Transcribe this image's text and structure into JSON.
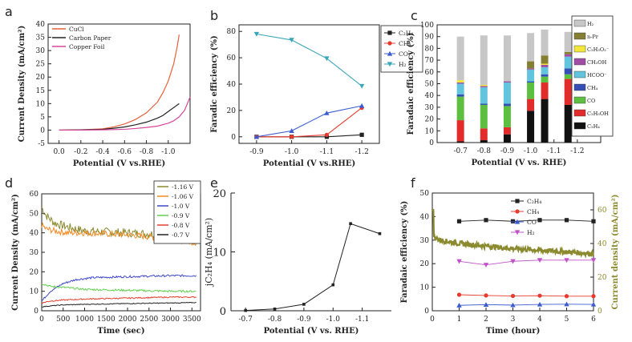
{
  "chart_data": [
    {
      "panel": "a",
      "type": "line",
      "xlabel": "Potential (V vs.RHE)",
      "ylabel": "Current Density (mA/cm²)",
      "xlim": [
        0.1,
        -1.2
      ],
      "ylim": [
        -5,
        40
      ],
      "xticks": [
        "0.0",
        "-0.2",
        "-0.4",
        "-0.6",
        "-0.8",
        "-1.0"
      ],
      "yticks": [
        "-5",
        "0",
        "5",
        "10",
        "15",
        "20",
        "25",
        "30",
        "35",
        "40"
      ],
      "series": [
        {
          "name": "CuCl",
          "color": "#e8613c",
          "x": [
            0,
            -0.2,
            -0.4,
            -0.5,
            -0.6,
            -0.7,
            -0.8,
            -0.9,
            -0.95,
            -1.0,
            -1.05,
            -1.08,
            -1.1
          ],
          "y": [
            0,
            0.1,
            0.5,
            1.2,
            2.3,
            4.0,
            6.5,
            10.5,
            14,
            18.5,
            25,
            31,
            36
          ]
        },
        {
          "name": "Carbon Paper",
          "color": "#222222",
          "x": [
            0,
            -0.2,
            -0.4,
            -0.5,
            -0.6,
            -0.7,
            -0.8,
            -0.9,
            -0.95,
            -1.0,
            -1.05,
            -1.1
          ],
          "y": [
            0,
            0.1,
            0.3,
            0.7,
            1.2,
            2.0,
            3.0,
            4.5,
            5.5,
            7.0,
            8.5,
            10
          ]
        },
        {
          "name": "Copper Foil",
          "color": "#d9479a",
          "x": [
            0,
            -0.2,
            -0.4,
            -0.6,
            -0.7,
            -0.8,
            -0.9,
            -1.0,
            -1.05,
            -1.1,
            -1.15,
            -1.2
          ],
          "y": [
            0,
            0,
            0.1,
            0.3,
            0.6,
            1.0,
            1.5,
            2.6,
            3.5,
            5.0,
            7.5,
            12.5
          ]
        }
      ]
    },
    {
      "panel": "b",
      "type": "line",
      "xlabel": "Potential (V vs.RHE)",
      "ylabel": "Faradic efficiency (%)",
      "xlim": [
        -0.85,
        -1.25
      ],
      "ylim": [
        -5,
        85
      ],
      "categories": [
        "-0.9",
        "-1.0",
        "-1.1",
        "-1.2"
      ],
      "yticks": [
        "0",
        "20",
        "40",
        "60",
        "80"
      ],
      "series": [
        {
          "name": "C₂H₄",
          "color": "#222222",
          "marker": "square",
          "values": [
            0,
            0,
            0,
            1.5
          ]
        },
        {
          "name": "CH₄",
          "color": "#e83a2c",
          "marker": "circle",
          "values": [
            0,
            0,
            1.5,
            22
          ]
        },
        {
          "name": "CO",
          "color": "#3b5ccf",
          "marker": "triangle",
          "values": [
            0,
            4.5,
            18,
            23.5
          ]
        },
        {
          "name": "H₂",
          "color": "#3aa6b9",
          "marker": "down",
          "values": [
            78,
            73.5,
            59.5,
            38.5
          ]
        }
      ]
    },
    {
      "panel": "c",
      "type": "bar",
      "xlabel": "Potential (V vs. RHE)",
      "ylabel": "Faradaic efficiency (%)",
      "ylim": [
        0,
        100
      ],
      "yticks": [
        "0",
        "10",
        "20",
        "30",
        "40",
        "50",
        "60",
        "70",
        "80",
        "90",
        "100"
      ],
      "xticks": [
        "-0.7",
        "-0.8",
        "-0.9",
        "-1.0",
        "-1.1",
        "-1.2"
      ],
      "categories": [
        "-0.7",
        "-0.8",
        "-0.9",
        "-1.0",
        "-1.06",
        "-1.16"
      ],
      "x": [
        -0.7,
        -0.8,
        -0.9,
        -1.0,
        -1.06,
        -1.16
      ],
      "series": [
        {
          "name": "C₂H₄",
          "color": "#111111",
          "values": [
            1,
            2,
            7,
            27,
            37,
            32
          ]
        },
        {
          "name": "C₂H₅OH",
          "color": "#e22b2b",
          "values": [
            18,
            10,
            6,
            10,
            14,
            22
          ]
        },
        {
          "name": "CO",
          "color": "#5cbf3f",
          "values": [
            20,
            20,
            18,
            14,
            5,
            4
          ]
        },
        {
          "name": "CH₄",
          "color": "#3550b4",
          "values": [
            2,
            1,
            2,
            1,
            2,
            5
          ]
        },
        {
          "name": "HCOO⁻",
          "color": "#63c4dd",
          "values": [
            9,
            14,
            18,
            10,
            6,
            10
          ]
        },
        {
          "name": "CH₃OH",
          "color": "#a04da5",
          "values": [
            1,
            1,
            1,
            1,
            2,
            2
          ]
        },
        {
          "name": "C₂H₃O₂⁻",
          "color": "#f2e63b",
          "values": [
            2,
            1,
            0,
            0,
            1,
            0
          ]
        },
        {
          "name": "n-Pr",
          "color": "#857f33",
          "values": [
            0,
            0,
            0,
            6,
            7,
            2
          ]
        },
        {
          "name": "H₂",
          "color": "#c7c7c7",
          "values": [
            37,
            42,
            39,
            24,
            22,
            17
          ]
        }
      ]
    },
    {
      "panel": "d",
      "type": "line",
      "xlabel": "Time (sec)",
      "ylabel": "Current Density (mA/cm²)",
      "xlim": [
        0,
        3700
      ],
      "ylim": [
        0,
        60
      ],
      "xticks": [
        "0",
        "500",
        "1000",
        "1500",
        "2000",
        "2500",
        "3000",
        "3500"
      ],
      "yticks": [
        "0",
        "10",
        "20",
        "30",
        "40",
        "50",
        "60"
      ],
      "series": [
        {
          "name": "-1.16 V",
          "color": "#8b8a2e",
          "x": [
            0,
            100,
            300,
            600,
            1000,
            2000,
            3000,
            3600
          ],
          "y": [
            53,
            49,
            45,
            43,
            41,
            40,
            39,
            37
          ]
        },
        {
          "name": "-1.06 V",
          "color": "#f08a24",
          "x": [
            0,
            100,
            300,
            600,
            1000,
            2000,
            3000,
            3600
          ],
          "y": [
            44,
            42,
            41,
            40,
            40,
            39,
            37,
            35
          ]
        },
        {
          "name": "-1.0 V",
          "color": "#3e48c8",
          "x": [
            0,
            200,
            500,
            800,
            1200,
            2000,
            3000,
            3600
          ],
          "y": [
            5,
            10,
            14,
            16,
            17,
            17.5,
            18,
            18
          ]
        },
        {
          "name": "-0.9 V",
          "color": "#63d04f",
          "x": [
            0,
            200,
            500,
            1000,
            2000,
            3000,
            3600
          ],
          "y": [
            14,
            12.5,
            12,
            11,
            10.5,
            10,
            10
          ]
        },
        {
          "name": "-0.8 V",
          "color": "#e53e2c",
          "x": [
            0,
            200,
            500,
            1000,
            2000,
            3000,
            3600
          ],
          "y": [
            4,
            5,
            5.5,
            6,
            6.5,
            7,
            7
          ]
        },
        {
          "name": "-0.7 V",
          "color": "#222222",
          "x": [
            0,
            200,
            500,
            1000,
            2000,
            3000,
            3600
          ],
          "y": [
            2,
            2.5,
            3,
            3.3,
            3.7,
            4,
            4.2
          ]
        }
      ]
    },
    {
      "panel": "e",
      "type": "line",
      "xlabel": "Potential (V vs. RHE)",
      "ylabel": "jC₂H₄ (mA/cm²)",
      "xlim": [
        -0.65,
        -1.2
      ],
      "ylim": [
        0,
        20
      ],
      "xticks": [
        "-0.7",
        "-0.8",
        "-0.9",
        "-1.0",
        "-1.1"
      ],
      "yticks": [
        "0",
        "10",
        "20"
      ],
      "series": [
        {
          "name": "jC₂H₄",
          "color": "#222222",
          "x": [
            -0.7,
            -0.8,
            -0.9,
            -1.0,
            -1.06,
            -1.16
          ],
          "y": [
            0.05,
            0.3,
            1.1,
            4.4,
            14.8,
            13.1
          ]
        }
      ]
    },
    {
      "panel": "f",
      "type": "line",
      "xlabel": "Time (hour)",
      "ylabel": "Faradaic efficiency (%)",
      "y2label": "Current density (mA/cm²)",
      "xlim": [
        0,
        6
      ],
      "ylim": [
        0,
        50
      ],
      "y2lim": [
        0,
        70
      ],
      "xticks": [
        "0",
        "1",
        "2",
        "3",
        "4",
        "5",
        "6"
      ],
      "yticks": [
        "0",
        "10",
        "20",
        "30",
        "40",
        "50"
      ],
      "y2ticks": [
        "0",
        "20",
        "40",
        "60"
      ],
      "series": [
        {
          "name": "C₂H₄",
          "color": "#222222",
          "marker": "square",
          "x": [
            1,
            2,
            3,
            4,
            5,
            6
          ],
          "y": [
            38,
            38.5,
            38,
            38.5,
            38.5,
            38
          ]
        },
        {
          "name": "CH₄",
          "color": "#e83a2c",
          "marker": "circle",
          "x": [
            1,
            2,
            3,
            4,
            5,
            6
          ],
          "y": [
            6.8,
            6.5,
            6.3,
            6.4,
            6.2,
            6.2
          ]
        },
        {
          "name": "CO",
          "color": "#3b5ccf",
          "marker": "triangle",
          "x": [
            1,
            2,
            3,
            4,
            5,
            6
          ],
          "y": [
            2.3,
            2.6,
            2.4,
            2.7,
            2.8,
            2.7
          ]
        },
        {
          "name": "H₂",
          "color": "#c052c8",
          "marker": "down",
          "x": [
            1,
            2,
            3,
            4,
            5,
            6
          ],
          "y": [
            21,
            19.5,
            21,
            21.5,
            21.5,
            21.5
          ]
        },
        {
          "name": "current density",
          "color": "#8b8a2e",
          "axis": "right",
          "x": [
            0,
            0.3,
            1,
            2,
            3,
            4,
            5,
            6
          ],
          "y": [
            44,
            42,
            40,
            38.5,
            37,
            36,
            35,
            34
          ]
        }
      ]
    }
  ]
}
